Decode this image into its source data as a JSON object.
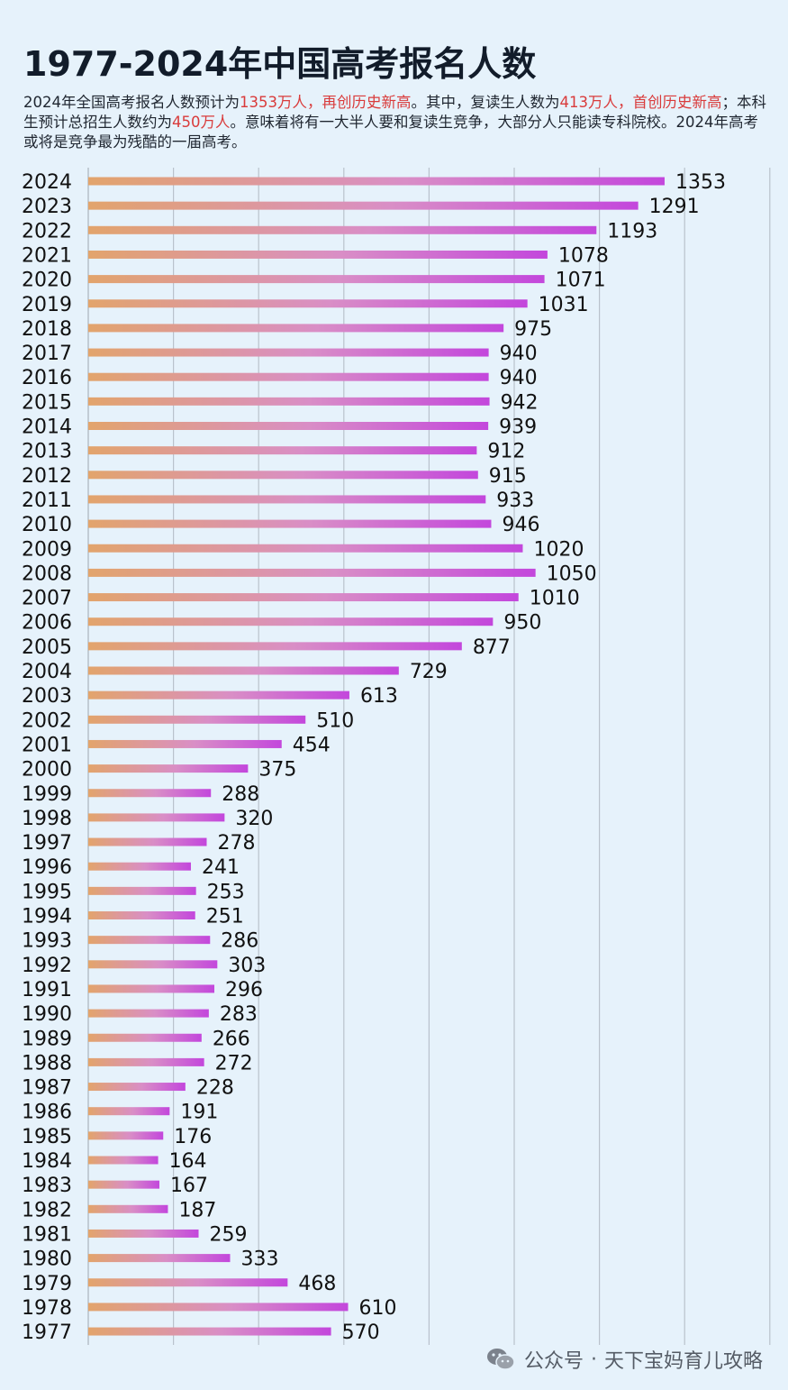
{
  "header": {
    "title": "1977-2024年中国高考报名人数",
    "desc_segments": [
      {
        "text": "2024年全国高考报名人数预计为",
        "hl": false
      },
      {
        "text": "1353万人，再创历史新高",
        "hl": true
      },
      {
        "text": "。其中，复读生人数为",
        "hl": false
      },
      {
        "text": "413万人，首创历史新高",
        "hl": true
      },
      {
        "text": "；本科生预计总招生人数约为",
        "hl": false
      },
      {
        "text": "450万人",
        "hl": true
      },
      {
        "text": "。意味着将有一大半人要和复读生竞争，大部分人只能读专科院校。2024年高考或将是竞争最为残酷的一届高考。",
        "hl": false
      }
    ]
  },
  "colors": {
    "background": "#e6f2fb",
    "bar_start": "#e2a46c",
    "bar_mid": "#d98ec6",
    "bar_end": "#c347dc",
    "grid": "#b9c2cc",
    "highlight": "#d93b3b"
  },
  "chart_data": {
    "type": "bar",
    "orientation": "horizontal",
    "title": "1977-2024年中国高考报名人数",
    "xlim": [
      0,
      1600
    ],
    "grid": true,
    "categories": [
      "2024",
      "2023",
      "2022",
      "2021",
      "2020",
      "2019",
      "2018",
      "2017",
      "2016",
      "2015",
      "2014",
      "2013",
      "2012",
      "2011",
      "2010",
      "2009",
      "2008",
      "2007",
      "2006",
      "2005",
      "2004",
      "2003",
      "2002",
      "2001",
      "2000",
      "1999",
      "1998",
      "1997",
      "1996",
      "1995",
      "1994",
      "1993",
      "1992",
      "1991",
      "1990",
      "1989",
      "1988",
      "1987",
      "1986",
      "1985",
      "1984",
      "1983",
      "1982",
      "1981",
      "1980",
      "1979",
      "1978",
      "1977"
    ],
    "values": [
      1353,
      1291,
      1193,
      1078,
      1071,
      1031,
      975,
      940,
      940,
      942,
      939,
      912,
      915,
      933,
      946,
      1020,
      1050,
      1010,
      950,
      877,
      729,
      613,
      510,
      454,
      375,
      288,
      320,
      278,
      241,
      253,
      251,
      286,
      303,
      296,
      283,
      266,
      272,
      228,
      191,
      176,
      164,
      167,
      187,
      259,
      333,
      468,
      610,
      570
    ]
  },
  "watermark": {
    "icon": "wechat-icon",
    "prefix": "公众号",
    "separator": "·",
    "account": "天下宝妈育儿攻略"
  }
}
